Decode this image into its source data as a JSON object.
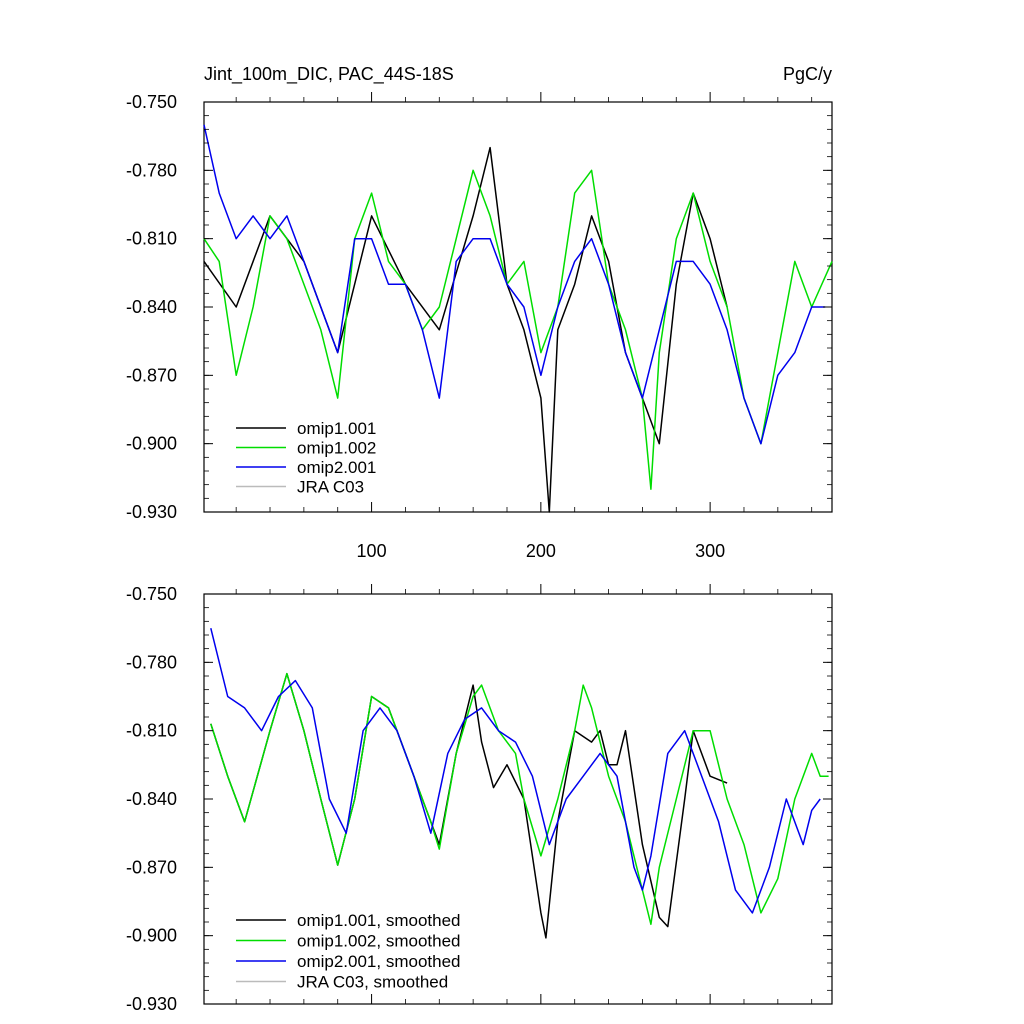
{
  "chart_data": [
    {
      "type": "line",
      "title": "Jint_100m_DIC, PAC_44S-18S",
      "units": "PgC/y",
      "xlim": [
        1,
        372
      ],
      "ylim": [
        -0.93,
        -0.75
      ],
      "x_ticks": [
        100,
        200,
        300
      ],
      "y_ticks": [
        "-0.750",
        "-0.780",
        "-0.810",
        "-0.840",
        "-0.870",
        "-0.900",
        "-0.930"
      ],
      "legend_position": "bottom-left",
      "series": [
        {
          "name": "omip1.001",
          "color": "#000000",
          "x": [
            1,
            20,
            40,
            60,
            80,
            100,
            120,
            140,
            160,
            170,
            180,
            190,
            200,
            205,
            210,
            220,
            230,
            240,
            250,
            260,
            270,
            280,
            290,
            300,
            310
          ],
          "values": [
            -0.82,
            -0.84,
            -0.8,
            -0.82,
            -0.86,
            -0.8,
            -0.83,
            -0.85,
            -0.8,
            -0.77,
            -0.83,
            -0.85,
            -0.88,
            -0.93,
            -0.85,
            -0.83,
            -0.8,
            -0.82,
            -0.86,
            -0.88,
            -0.9,
            -0.83,
            -0.79,
            -0.81,
            -0.84
          ]
        },
        {
          "name": "omip1.002",
          "color": "#00dd00",
          "x": [
            1,
            10,
            20,
            30,
            40,
            50,
            60,
            70,
            80,
            90,
            100,
            110,
            120,
            130,
            140,
            150,
            160,
            170,
            180,
            190,
            200,
            210,
            220,
            230,
            240,
            250,
            260,
            265,
            270,
            280,
            290,
            300,
            310,
            320,
            330,
            340,
            350,
            360,
            372
          ],
          "values": [
            -0.81,
            -0.82,
            -0.87,
            -0.84,
            -0.8,
            -0.81,
            -0.83,
            -0.85,
            -0.88,
            -0.81,
            -0.79,
            -0.82,
            -0.83,
            -0.85,
            -0.84,
            -0.81,
            -0.78,
            -0.8,
            -0.83,
            -0.82,
            -0.86,
            -0.84,
            -0.79,
            -0.78,
            -0.83,
            -0.85,
            -0.88,
            -0.92,
            -0.86,
            -0.81,
            -0.79,
            -0.82,
            -0.84,
            -0.88,
            -0.9,
            -0.86,
            -0.82,
            -0.84,
            -0.82
          ]
        },
        {
          "name": "omip2.001",
          "color": "#0000ee",
          "x": [
            1,
            10,
            20,
            30,
            40,
            50,
            60,
            70,
            80,
            90,
            100,
            110,
            120,
            130,
            140,
            150,
            160,
            170,
            180,
            190,
            200,
            210,
            220,
            230,
            240,
            250,
            260,
            270,
            280,
            290,
            300,
            310,
            320,
            330,
            340,
            350,
            360,
            368
          ],
          "values": [
            -0.76,
            -0.79,
            -0.81,
            -0.8,
            -0.81,
            -0.8,
            -0.82,
            -0.84,
            -0.86,
            -0.81,
            -0.81,
            -0.83,
            -0.83,
            -0.85,
            -0.88,
            -0.82,
            -0.81,
            -0.81,
            -0.83,
            -0.84,
            -0.87,
            -0.84,
            -0.82,
            -0.81,
            -0.83,
            -0.86,
            -0.88,
            -0.85,
            -0.82,
            -0.82,
            -0.83,
            -0.85,
            -0.88,
            -0.9,
            -0.87,
            -0.86,
            -0.84,
            -0.84
          ]
        },
        {
          "name": "JRA C03",
          "color": "#bbbbbb",
          "x": [],
          "values": []
        }
      ]
    },
    {
      "type": "line",
      "title": "",
      "units": "",
      "xlim": [
        1,
        372
      ],
      "ylim": [
        -0.93,
        -0.75
      ],
      "x_ticks": [
        100,
        200,
        300
      ],
      "y_ticks": [
        "-0.750",
        "-0.780",
        "-0.810",
        "-0.840",
        "-0.870",
        "-0.900",
        "-0.930"
      ],
      "legend_position": "bottom-left",
      "series": [
        {
          "name": "omip1.001, smoothed",
          "color": "#000000",
          "x": [
            5,
            15,
            25,
            40,
            50,
            60,
            70,
            80,
            90,
            100,
            110,
            115,
            125,
            135,
            140,
            150,
            160,
            165,
            172,
            180,
            190,
            200,
            203,
            210,
            220,
            230,
            235,
            240,
            245,
            250,
            260,
            270,
            275,
            285,
            290,
            300,
            310
          ],
          "values": [
            -0.807,
            -0.83,
            -0.85,
            -0.81,
            -0.785,
            -0.81,
            -0.84,
            -0.869,
            -0.84,
            -0.795,
            -0.8,
            -0.81,
            -0.83,
            -0.85,
            -0.86,
            -0.82,
            -0.79,
            -0.815,
            -0.835,
            -0.825,
            -0.84,
            -0.89,
            -0.901,
            -0.85,
            -0.81,
            -0.815,
            -0.81,
            -0.825,
            -0.825,
            -0.81,
            -0.86,
            -0.892,
            -0.896,
            -0.84,
            -0.81,
            -0.83,
            -0.833
          ]
        },
        {
          "name": "omip1.002, smoothed",
          "color": "#00dd00",
          "x": [
            5,
            15,
            25,
            40,
            50,
            60,
            70,
            80,
            90,
            100,
            110,
            115,
            125,
            135,
            140,
            150,
            160,
            165,
            175,
            185,
            190,
            200,
            210,
            220,
            225,
            230,
            240,
            250,
            260,
            265,
            270,
            280,
            290,
            300,
            310,
            320,
            330,
            340,
            350,
            360,
            365,
            370
          ],
          "values": [
            -0.807,
            -0.83,
            -0.85,
            -0.81,
            -0.785,
            -0.81,
            -0.84,
            -0.869,
            -0.84,
            -0.795,
            -0.8,
            -0.81,
            -0.83,
            -0.85,
            -0.862,
            -0.82,
            -0.795,
            -0.79,
            -0.81,
            -0.82,
            -0.84,
            -0.865,
            -0.84,
            -0.81,
            -0.79,
            -0.8,
            -0.83,
            -0.85,
            -0.88,
            -0.895,
            -0.87,
            -0.84,
            -0.81,
            -0.81,
            -0.84,
            -0.86,
            -0.89,
            -0.875,
            -0.84,
            -0.82,
            -0.83,
            -0.83
          ]
        },
        {
          "name": "omip2.001, smoothed",
          "color": "#0000ee",
          "x": [
            5,
            15,
            25,
            35,
            45,
            55,
            65,
            75,
            85,
            95,
            105,
            115,
            125,
            135,
            145,
            155,
            165,
            175,
            185,
            195,
            205,
            215,
            225,
            235,
            245,
            255,
            260,
            265,
            275,
            285,
            295,
            305,
            315,
            325,
            335,
            345,
            355,
            360,
            365
          ],
          "values": [
            -0.765,
            -0.795,
            -0.8,
            -0.81,
            -0.795,
            -0.788,
            -0.8,
            -0.84,
            -0.855,
            -0.81,
            -0.8,
            -0.81,
            -0.83,
            -0.855,
            -0.82,
            -0.805,
            -0.8,
            -0.81,
            -0.815,
            -0.83,
            -0.86,
            -0.84,
            -0.83,
            -0.82,
            -0.83,
            -0.87,
            -0.88,
            -0.865,
            -0.82,
            -0.81,
            -0.83,
            -0.85,
            -0.88,
            -0.89,
            -0.87,
            -0.84,
            -0.86,
            -0.845,
            -0.84
          ]
        },
        {
          "name": "JRA C03, smoothed",
          "color": "#bbbbbb",
          "x": [],
          "values": []
        }
      ]
    }
  ]
}
